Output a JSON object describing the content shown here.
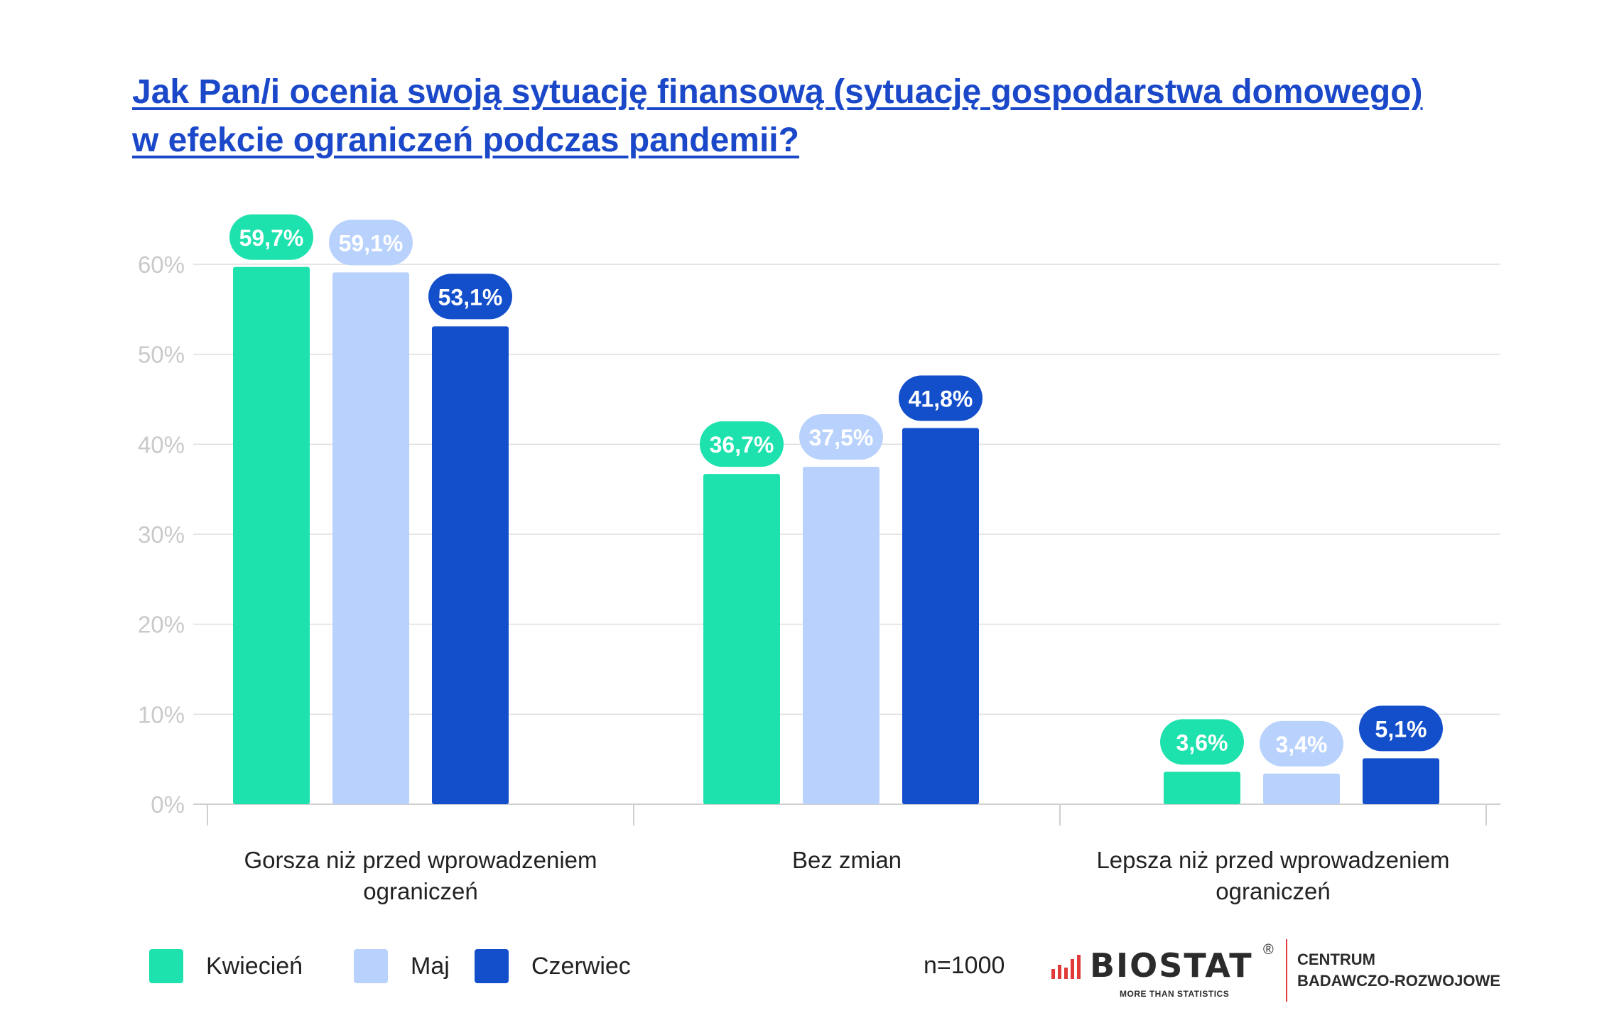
{
  "title": {
    "line1": "Jak Pan/i ocenia swoją sytuację finansową (sytuację gospodarstwa domowego)",
    "line2": "w efekcie ograniczeń podczas pandemii?"
  },
  "chart_data": {
    "type": "bar",
    "title": "Jak Pan/i ocenia swoją sytuację finansową (sytuację gospodarstwa domowego) w efekcie ograniczeń podczas pandemii?",
    "categories": [
      [
        "Gorsza niż przed wprowadzeniem",
        "ograniczeń"
      ],
      [
        "Bez zmian"
      ],
      [
        "Lepsza niż przed wprowadzeniem",
        "ograniczeń"
      ]
    ],
    "series": [
      {
        "name": "Kwiecień",
        "color": "#1de2ad",
        "label_color": "#ffffff",
        "values": [
          59.7,
          36.7,
          3.6
        ],
        "labels": [
          "59,7%",
          "36,7%",
          "3,6%"
        ]
      },
      {
        "name": "Maj",
        "color": "#b9d2fd",
        "label_color": "#ffffff",
        "values": [
          59.1,
          37.5,
          3.4
        ],
        "labels": [
          "59,1%",
          "37,5%",
          "3,4%"
        ]
      },
      {
        "name": "Czerwiec",
        "color": "#134ecb",
        "label_color": "#ffffff",
        "values": [
          53.1,
          41.8,
          5.1
        ],
        "labels": [
          "53,1%",
          "41,8%",
          "5,1%"
        ]
      }
    ],
    "y_ticks": [
      {
        "value": 0,
        "label": "0%"
      },
      {
        "value": 10,
        "label": "10%"
      },
      {
        "value": 20,
        "label": "20%"
      },
      {
        "value": 30,
        "label": "30%"
      },
      {
        "value": 40,
        "label": "40%"
      },
      {
        "value": 50,
        "label": "50%"
      },
      {
        "value": 60,
        "label": "60%"
      }
    ],
    "ylim": [
      0,
      60
    ],
    "xlabel": "",
    "ylabel": "",
    "grid": true,
    "legend": "bottom-left"
  },
  "legend": {
    "items": [
      {
        "label": "Kwiecień",
        "color": "#1de2ad"
      },
      {
        "label": "Maj",
        "color": "#b9d2fd"
      },
      {
        "label": "Czerwiec",
        "color": "#134ecb"
      }
    ]
  },
  "sample_size": "n=1000",
  "logo": {
    "wordmark": "BIOSTAT",
    "registered": "®",
    "tagline": "MORE THAN STATISTICS",
    "center_line1": "CENTRUM",
    "center_line2": "BADAWCZO-ROZWOJOWE"
  }
}
